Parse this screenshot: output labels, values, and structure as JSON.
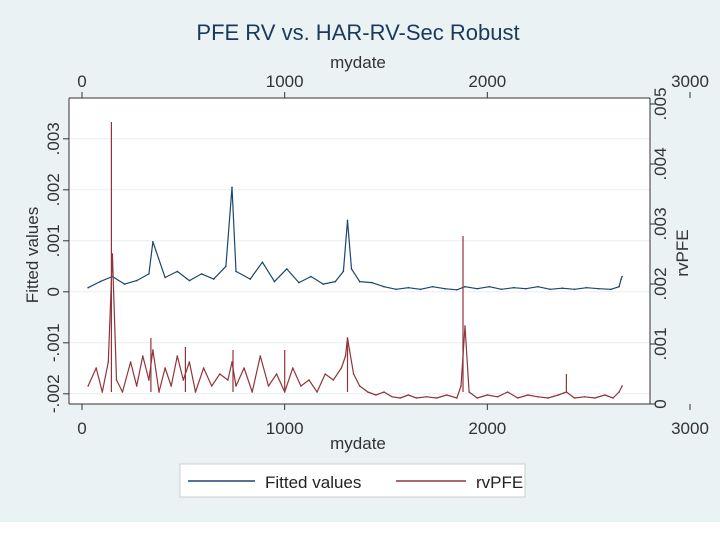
{
  "chart_data": {
    "type": "line",
    "title": "PFE RV vs. HAR-RV-Sec Robust",
    "xlabel": "mydate",
    "xlabel_top": "mydate",
    "ylabel_left": "Fitted values",
    "ylabel_right": "rvPFE",
    "xlim": [
      0,
      3000
    ],
    "ylim_left": [
      -0.0022,
      0.0038
    ],
    "ylim_right": [
      0,
      0.0051
    ],
    "x_ticks": [
      {
        "value": 0,
        "label": "0"
      },
      {
        "value": 1000,
        "label": "1000"
      },
      {
        "value": 2000,
        "label": "2000"
      },
      {
        "value": 3000,
        "label": "3000"
      }
    ],
    "y_left_ticks": [
      {
        "value": -0.002,
        "label": "-.002"
      },
      {
        "value": -0.001,
        "label": "-.001"
      },
      {
        "value": 0,
        "label": "0"
      },
      {
        "value": 0.001,
        "label": ".001"
      },
      {
        "value": 0.002,
        "label": ".002"
      },
      {
        "value": 0.003,
        "label": ".003"
      }
    ],
    "y_right_ticks": [
      {
        "value": 0,
        "label": "0"
      },
      {
        "value": 0.001,
        "label": ".001"
      },
      {
        "value": 0.002,
        "label": ".002"
      },
      {
        "value": 0.003,
        "label": ".003"
      },
      {
        "value": 0.004,
        "label": ".004"
      },
      {
        "value": 0.005,
        "label": ".005"
      }
    ],
    "series": [
      {
        "name": "Fitted values",
        "axis": "left",
        "color": "#1a476f",
        "x": [
          30,
          90,
          150,
          210,
          270,
          330,
          350,
          410,
          470,
          530,
          590,
          650,
          710,
          740,
          760,
          830,
          890,
          950,
          1010,
          1070,
          1130,
          1190,
          1250,
          1290,
          1310,
          1330,
          1370,
          1430,
          1490,
          1550,
          1610,
          1670,
          1730,
          1790,
          1850,
          1890,
          1950,
          2010,
          2070,
          2130,
          2190,
          2250,
          2310,
          2370,
          2430,
          2490,
          2550,
          2610,
          2650,
          2660,
          2665
        ],
        "values": [
          8e-05,
          0.0002,
          0.0003,
          0.00015,
          0.00022,
          0.00035,
          0.00098,
          0.00028,
          0.0004,
          0.00022,
          0.00035,
          0.00025,
          0.0005,
          0.00205,
          0.0004,
          0.00025,
          0.00058,
          0.0002,
          0.00045,
          0.00018,
          0.0003,
          0.00015,
          0.0002,
          0.0004,
          0.0014,
          0.00045,
          0.0002,
          0.00018,
          0.0001,
          5e-05,
          8e-05,
          5e-05,
          0.0001,
          6e-05,
          4e-05,
          0.0001,
          6e-05,
          0.0001,
          5e-05,
          8e-05,
          6e-05,
          0.0001,
          5e-05,
          7e-05,
          5e-05,
          8e-05,
          6e-05,
          5e-05,
          0.0001,
          0.00025,
          0.0003
        ]
      },
      {
        "name": "rvPFE",
        "axis": "right",
        "color": "#90353b",
        "x": [
          30,
          70,
          100,
          130,
          150,
          170,
          200,
          240,
          270,
          300,
          330,
          350,
          380,
          410,
          440,
          470,
          500,
          530,
          560,
          600,
          640,
          680,
          720,
          740,
          760,
          800,
          840,
          880,
          920,
          960,
          1000,
          1040,
          1080,
          1120,
          1160,
          1200,
          1240,
          1280,
          1300,
          1310,
          1320,
          1340,
          1370,
          1410,
          1450,
          1490,
          1530,
          1570,
          1610,
          1650,
          1700,
          1750,
          1800,
          1850,
          1870,
          1890,
          1910,
          1950,
          2000,
          2050,
          2100,
          2150,
          2200,
          2250,
          2300,
          2350,
          2390,
          2430,
          2480,
          2530,
          2580,
          2620,
          2650,
          2665
        ],
        "values": [
          0.0003,
          0.0006,
          0.0002,
          0.0007,
          0.0025,
          0.0004,
          0.0002,
          0.0007,
          0.0003,
          0.0008,
          0.0004,
          0.0009,
          0.0002,
          0.0006,
          0.0003,
          0.0008,
          0.0004,
          0.0007,
          0.0002,
          0.0006,
          0.0003,
          0.0005,
          0.0004,
          0.0007,
          0.0003,
          0.0006,
          0.0002,
          0.0008,
          0.0003,
          0.0005,
          0.0002,
          0.0006,
          0.0003,
          0.0004,
          0.0002,
          0.0005,
          0.0004,
          0.0006,
          0.0008,
          0.0011,
          0.0009,
          0.0005,
          0.0003,
          0.0002,
          0.00015,
          0.0002,
          0.00012,
          0.0001,
          0.00015,
          0.0001,
          0.00012,
          0.0001,
          0.00015,
          0.0001,
          0.0003,
          0.0013,
          0.0002,
          0.0001,
          0.00015,
          0.00012,
          0.0002,
          0.0001,
          0.00015,
          0.00012,
          0.0001,
          0.00015,
          0.0002,
          0.0001,
          0.00012,
          0.0001,
          0.00015,
          0.0001,
          0.0002,
          0.0003
        ]
      }
    ],
    "spikes": [
      {
        "series": "rvPFE",
        "x": 145,
        "value": 0.0047
      },
      {
        "series": "rvPFE",
        "x": 340,
        "value": 0.0011
      },
      {
        "series": "rvPFE",
        "x": 510,
        "value": 0.00095
      },
      {
        "series": "rvPFE",
        "x": 745,
        "value": 0.0009
      },
      {
        "series": "rvPFE",
        "x": 1000,
        "value": 0.0009
      },
      {
        "series": "rvPFE",
        "x": 1310,
        "value": 0.0011
      },
      {
        "series": "rvPFE",
        "x": 1880,
        "value": 0.0028
      },
      {
        "series": "rvPFE",
        "x": 2390,
        "value": 0.0005
      }
    ],
    "legend": {
      "position": "bottom",
      "entries": [
        "Fitted values",
        "rvPFE"
      ]
    },
    "grid": true
  }
}
